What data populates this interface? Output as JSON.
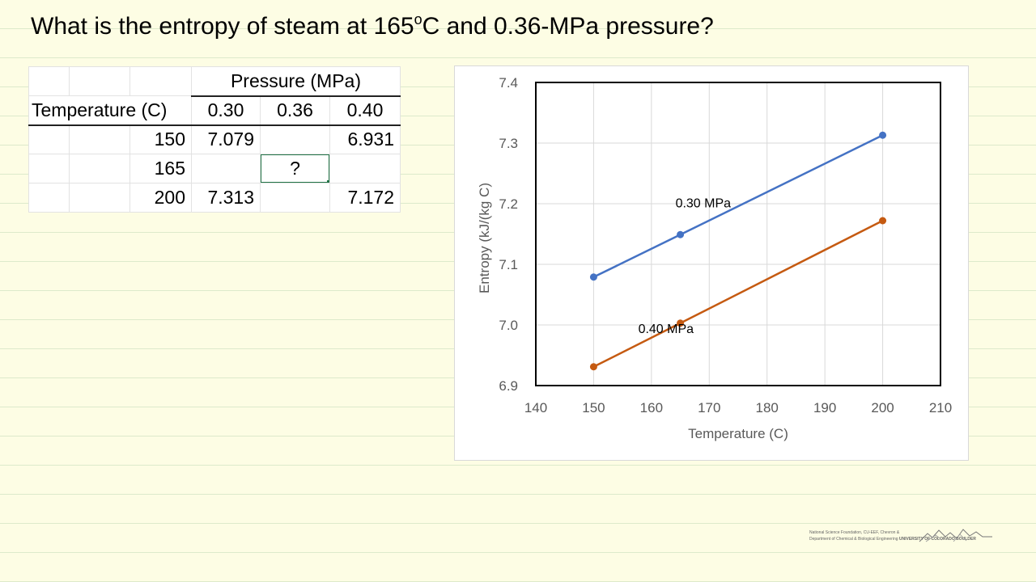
{
  "slide": {
    "question_prefix": "What is the entropy of steam at 165",
    "question_degree": "o",
    "question_suffix": "C and 0.36-MPa pressure?"
  },
  "table": {
    "pressure_header": "Pressure (MPa)",
    "temperature_header": "Temperature (C)",
    "pressures": [
      "0.30",
      "0.36",
      "0.40"
    ],
    "rows": [
      {
        "temp": "150",
        "values": [
          "7.079",
          "",
          "6.931"
        ]
      },
      {
        "temp": "165",
        "values": [
          "",
          "?",
          ""
        ]
      },
      {
        "temp": "200",
        "values": [
          "7.313",
          "",
          "7.172"
        ]
      }
    ]
  },
  "chart_data": {
    "type": "line",
    "title": "",
    "xlabel": "Temperature (C)",
    "ylabel": "Entropy (kJ/(kg C)",
    "xlim": [
      140,
      210
    ],
    "ylim": [
      6.9,
      7.4
    ],
    "xticks": [
      140,
      150,
      160,
      170,
      180,
      190,
      200,
      210
    ],
    "yticks": [
      "6.9",
      "7.0",
      "7.1",
      "7.2",
      "7.3",
      "7.4"
    ],
    "grid": true,
    "series": [
      {
        "name": "0.30 MPa",
        "color": "#4472c4",
        "label": "0.30 MPa",
        "points": [
          [
            150,
            7.079
          ],
          [
            165,
            7.149
          ],
          [
            200,
            7.313
          ]
        ]
      },
      {
        "name": "0.40 MPa",
        "color": "#c55a11",
        "label": "0.40 MPa",
        "points": [
          [
            150,
            6.931
          ],
          [
            165,
            7.003
          ],
          [
            200,
            7.172
          ]
        ]
      }
    ]
  },
  "footer": {
    "credit_line1": "National Science Foundation, CU-EEF, Chevron &",
    "credit_line2": "Department of Chemical & Biological Engineering",
    "university": "UNIVERSITY OF COLORADO BOULDER"
  },
  "colors": {
    "background": "#fdfde4",
    "rule_line": "#ddeacb",
    "selection": "#217346"
  }
}
